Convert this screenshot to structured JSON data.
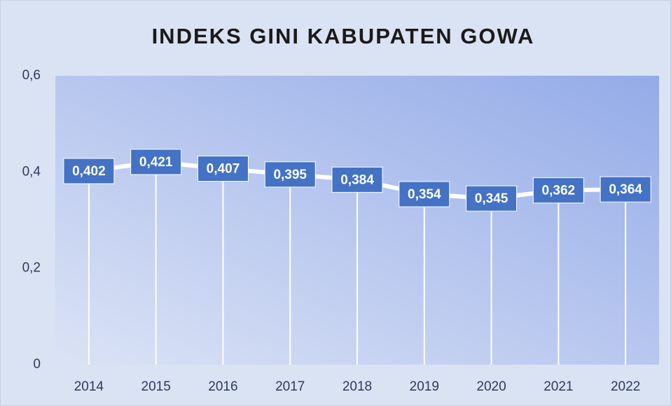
{
  "chart_data": {
    "type": "line",
    "title": "INDEKS GINI KABUPATEN GOWA",
    "categories": [
      "2014",
      "2015",
      "2016",
      "2017",
      "2018",
      "2019",
      "2020",
      "2021",
      "2022"
    ],
    "series": [
      {
        "name": "Indeks Gini",
        "color": "#ffffff",
        "values": [
          0.402,
          0.421,
          0.407,
          0.395,
          0.384,
          0.354,
          0.345,
          0.362,
          0.364
        ],
        "value_labels": [
          "0,402",
          "0,421",
          "0,407",
          "0,395",
          "0,384",
          "0,354",
          "0,345",
          "0,362",
          "0,364"
        ]
      }
    ],
    "label_color": "#4472c4",
    "ylim": [
      0,
      0.6
    ],
    "yticks": [
      0,
      {
        "value": 0.2,
        "label": "0,2"
      },
      {
        "value": 0.4,
        "label": "0,4"
      },
      {
        "value": 0.6,
        "label": "0,6"
      }
    ],
    "drop_lines": true
  }
}
